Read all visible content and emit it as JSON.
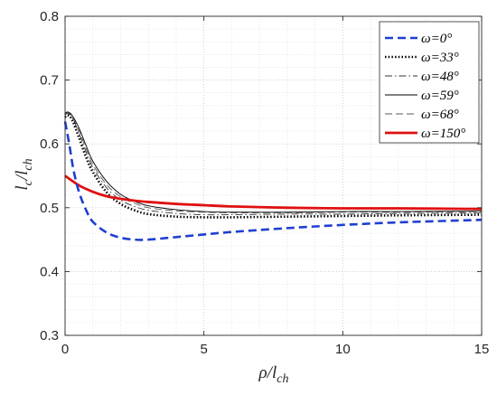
{
  "chart_data": {
    "type": "line",
    "xlabel": "ρ/l_ch",
    "ylabel": "l_c/l_ch",
    "xlim": [
      0,
      15
    ],
    "ylim": [
      0.3,
      0.8
    ],
    "xticks": [
      0,
      5,
      10,
      15
    ],
    "yticks": [
      0.3,
      0.4,
      0.5,
      0.6,
      0.7,
      0.8
    ],
    "xtick_labels": [
      "0",
      "5",
      "10",
      "15"
    ],
    "ytick_labels": [
      "0.3",
      "0.4",
      "0.5",
      "0.6",
      "0.7",
      "0.8"
    ],
    "grid": true,
    "minor_grid": true,
    "legend_position": "top-right",
    "series": [
      {
        "name": "ω=0°",
        "color": "#1f3fd1",
        "style": "dashed-thick",
        "x": [
          0,
          0.15,
          0.3,
          0.5,
          0.75,
          1.0,
          1.5,
          2.0,
          2.5,
          3.0,
          4.0,
          5.0,
          6.0,
          8.0,
          10.0,
          12.0,
          15.0
        ],
        "y": [
          0.635,
          0.6,
          0.56,
          0.525,
          0.497,
          0.478,
          0.461,
          0.453,
          0.45,
          0.45,
          0.454,
          0.458,
          0.462,
          0.468,
          0.473,
          0.477,
          0.481
        ]
      },
      {
        "name": "ω=33°",
        "color": "#000000",
        "style": "dotted-thick",
        "x": [
          0,
          0.1,
          0.25,
          0.5,
          0.75,
          1.0,
          1.5,
          2.0,
          2.5,
          3.0,
          4.0,
          5.0,
          6.0,
          8.0,
          10.0,
          12.0,
          15.0
        ],
        "y": [
          0.642,
          0.645,
          0.638,
          0.61,
          0.58,
          0.556,
          0.524,
          0.506,
          0.496,
          0.49,
          0.486,
          0.485,
          0.485,
          0.486,
          0.487,
          0.488,
          0.489
        ]
      },
      {
        "name": "ω=48°",
        "color": "#333333",
        "style": "dashdot",
        "x": [
          0,
          0.1,
          0.25,
          0.5,
          0.75,
          1.0,
          1.5,
          2.0,
          2.5,
          3.0,
          4.0,
          5.0,
          6.0,
          8.0,
          10.0,
          12.0,
          15.0
        ],
        "y": [
          0.645,
          0.648,
          0.642,
          0.617,
          0.588,
          0.563,
          0.531,
          0.512,
          0.502,
          0.496,
          0.491,
          0.489,
          0.489,
          0.49,
          0.49,
          0.491,
          0.492
        ]
      },
      {
        "name": "ω=59°",
        "color": "#000000",
        "style": "solid-thin",
        "x": [
          0,
          0.1,
          0.25,
          0.5,
          0.75,
          1.0,
          1.5,
          2.0,
          2.5,
          3.0,
          4.0,
          5.0,
          6.0,
          8.0,
          10.0,
          12.0,
          15.0
        ],
        "y": [
          0.648,
          0.65,
          0.645,
          0.625,
          0.598,
          0.573,
          0.541,
          0.521,
          0.51,
          0.503,
          0.497,
          0.494,
          0.493,
          0.493,
          0.494,
          0.494,
          0.495
        ]
      },
      {
        "name": "ω=68°",
        "color": "#595959",
        "style": "dashed-thin",
        "x": [
          0,
          0.1,
          0.25,
          0.5,
          0.75,
          1.0,
          1.5,
          2.0,
          2.5,
          3.0,
          4.0,
          5.0,
          6.0,
          8.0,
          10.0,
          12.0,
          15.0
        ],
        "y": [
          0.646,
          0.649,
          0.643,
          0.621,
          0.593,
          0.568,
          0.536,
          0.517,
          0.507,
          0.5,
          0.495,
          0.493,
          0.492,
          0.492,
          0.493,
          0.493,
          0.494
        ]
      },
      {
        "name": "ω=150°",
        "color": "#e01010",
        "style": "solid-thick",
        "x": [
          0,
          0.5,
          1.0,
          1.5,
          2.0,
          2.5,
          3.0,
          4.0,
          5.0,
          6.0,
          8.0,
          10.0,
          12.0,
          15.0
        ],
        "y": [
          0.55,
          0.535,
          0.525,
          0.518,
          0.514,
          0.511,
          0.509,
          0.506,
          0.504,
          0.502,
          0.5,
          0.499,
          0.499,
          0.498
        ]
      }
    ]
  }
}
